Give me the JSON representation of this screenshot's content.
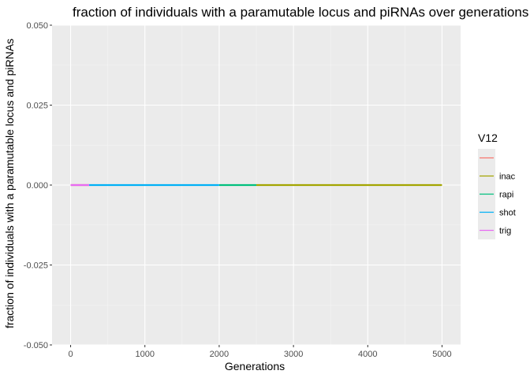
{
  "chart_data": {
    "type": "line",
    "title": "fraction of individuals with a paramutable locus and piRNAs over generations w",
    "xlabel": "Generations",
    "ylabel": "fraction of individuals with a paramutable locus and piRNAs",
    "xlim": [
      -250,
      5250
    ],
    "ylim": [
      -0.05,
      0.05
    ],
    "x_ticks": [
      0,
      1000,
      2000,
      3000,
      4000,
      5000
    ],
    "x_tick_labels": [
      "0",
      "1000",
      "2000",
      "3000",
      "4000",
      "5000"
    ],
    "y_ticks": [
      0.05,
      0.025,
      0.0,
      -0.025,
      -0.05
    ],
    "y_tick_labels": [
      "0.050",
      "0.025",
      "0.000",
      "-0.025",
      "-0.050"
    ],
    "grid": true,
    "legend": {
      "title": "V12",
      "position": "right"
    },
    "series": [
      {
        "name": "",
        "color": "#F8766D",
        "x": [
          0,
          250
        ],
        "values": [
          0,
          0
        ]
      },
      {
        "name": "inac",
        "color": "#A3A500",
        "x": [
          2500,
          5000
        ],
        "values": [
          0,
          0
        ]
      },
      {
        "name": "rapi",
        "color": "#00BF7D",
        "x": [
          2000,
          2500
        ],
        "values": [
          0,
          0
        ]
      },
      {
        "name": "shot",
        "color": "#00B0F6",
        "x": [
          250,
          2000
        ],
        "values": [
          0,
          0
        ]
      },
      {
        "name": "trig",
        "color": "#E76BF3",
        "x": [
          0,
          250
        ],
        "values": [
          0,
          0
        ]
      }
    ]
  }
}
